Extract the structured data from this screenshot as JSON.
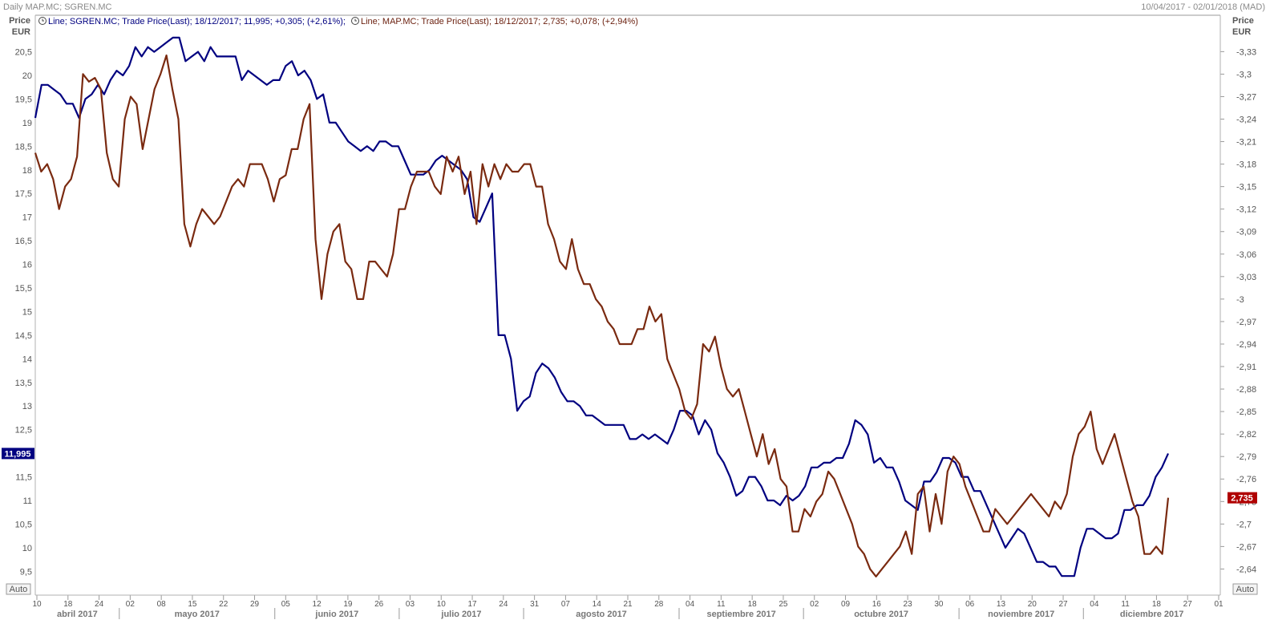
{
  "header": {
    "title": "Daily MAP.MC; SGREN.MC",
    "date_range": "10/04/2017 - 02/01/2018 (MAD)"
  },
  "legend": [
    {
      "text": "Line; SGREN.MC; Trade Price(Last);  18/12/2017; 11,995; +0,305; (+2,61%);"
    },
    {
      "text": "Line; MAP.MC; Trade Price(Last);  18/12/2017; 2,735; +0,078; (+2,94%)"
    }
  ],
  "axes": {
    "left_title": [
      "Price",
      "EUR"
    ],
    "right_title": [
      "Price",
      "EUR"
    ],
    "auto_left": "Auto",
    "auto_right": "Auto"
  },
  "chart_data": {
    "type": "line",
    "colors": {
      "SGREN.MC": "#000080",
      "MAP.MC": "#7a2a10"
    },
    "x_ticks": [
      "10",
      "18",
      "24",
      "02",
      "08",
      "15",
      "22",
      "29",
      "05",
      "12",
      "19",
      "26",
      "03",
      "10",
      "17",
      "24",
      "31",
      "07",
      "14",
      "21",
      "28",
      "04",
      "11",
      "18",
      "25",
      "02",
      "09",
      "16",
      "23",
      "30",
      "06",
      "13",
      "20",
      "27",
      "04",
      "11",
      "18",
      "27",
      "01"
    ],
    "months": [
      "abril 2017",
      "mayo 2017",
      "junio 2017",
      "julio 2017",
      "agosto 2017",
      "septiembre 2017",
      "octubre 2017",
      "noviembre 2017",
      "diciembre 2017"
    ],
    "left_axis": {
      "ylim": [
        9.2,
        20.9
      ],
      "ticks": [
        "20,5",
        "20",
        "19,5",
        "19",
        "18,5",
        "18",
        "17,5",
        "17",
        "16,5",
        "16",
        "15,5",
        "15",
        "14,5",
        "14",
        "13,5",
        "13",
        "12,5",
        "12",
        "11,5",
        "11",
        "10,5",
        "10",
        "9,5"
      ],
      "tick_values": [
        20.5,
        20,
        19.5,
        19,
        18.5,
        18,
        17.5,
        17,
        16.5,
        16,
        15.5,
        15,
        14.5,
        14,
        13.5,
        13,
        12.5,
        12,
        11.5,
        11,
        10.5,
        10,
        9.5
      ]
    },
    "right_axis": {
      "ylim": [
        2.618,
        3.355
      ],
      "ticks": [
        "3,33",
        "3,3",
        "3,27",
        "3,24",
        "3,21",
        "3,18",
        "3,15",
        "3,12",
        "3,09",
        "3,06",
        "3,03",
        "3",
        "2,97",
        "2,94",
        "2,91",
        "2,88",
        "2,85",
        "2,82",
        "2,79",
        "2,76",
        "2,73",
        "2,7",
        "2,67",
        "2,64"
      ],
      "tick_values": [
        3.33,
        3.3,
        3.27,
        3.24,
        3.21,
        3.18,
        3.15,
        3.12,
        3.09,
        3.06,
        3.03,
        3.0,
        2.97,
        2.94,
        2.91,
        2.88,
        2.85,
        2.82,
        2.79,
        2.76,
        2.73,
        2.7,
        2.67,
        2.64
      ]
    },
    "series": [
      {
        "name": "SGREN.MC",
        "axis": "left",
        "last_label": "11,995",
        "values": [
          19.1,
          19.8,
          19.8,
          19.7,
          19.6,
          19.4,
          19.4,
          19.1,
          19.5,
          19.6,
          19.8,
          19.6,
          19.9,
          20.1,
          20.0,
          20.2,
          20.6,
          20.4,
          20.6,
          20.5,
          20.6,
          20.7,
          20.8,
          20.8,
          20.3,
          20.4,
          20.5,
          20.3,
          20.6,
          20.4,
          20.4,
          20.4,
          20.4,
          19.9,
          20.1,
          20.0,
          19.9,
          19.8,
          19.9,
          19.9,
          20.2,
          20.3,
          20.0,
          20.1,
          19.9,
          19.5,
          19.6,
          19.0,
          19.0,
          18.8,
          18.6,
          18.5,
          18.4,
          18.5,
          18.4,
          18.6,
          18.6,
          18.5,
          18.5,
          18.2,
          17.9,
          17.9,
          17.9,
          18.0,
          18.2,
          18.3,
          18.2,
          18.1,
          18.0,
          17.8,
          17.0,
          16.9,
          17.2,
          17.5,
          14.5,
          14.5,
          14.0,
          12.9,
          13.1,
          13.2,
          13.7,
          13.9,
          13.8,
          13.6,
          13.3,
          13.1,
          13.1,
          13.0,
          12.8,
          12.8,
          12.7,
          12.6,
          12.6,
          12.6,
          12.6,
          12.3,
          12.3,
          12.4,
          12.3,
          12.4,
          12.3,
          12.2,
          12.5,
          12.9,
          12.9,
          12.8,
          12.4,
          12.7,
          12.5,
          12.0,
          11.8,
          11.5,
          11.1,
          11.2,
          11.5,
          11.5,
          11.3,
          11.0,
          11.0,
          10.9,
          11.1,
          11.0,
          11.1,
          11.3,
          11.7,
          11.7,
          11.8,
          11.8,
          11.9,
          11.9,
          12.2,
          12.7,
          12.6,
          12.4,
          11.8,
          11.9,
          11.7,
          11.7,
          11.4,
          11.0,
          10.9,
          10.8,
          11.4,
          11.4,
          11.6,
          11.9,
          11.9,
          11.8,
          11.5,
          11.5,
          11.2,
          11.2,
          10.9,
          10.6,
          10.3,
          10.0,
          10.2,
          10.4,
          10.3,
          10.0,
          9.7,
          9.7,
          9.6,
          9.6,
          9.4,
          9.4,
          9.4,
          10.0,
          10.4,
          10.4,
          10.3,
          10.2,
          10.2,
          10.3,
          10.8,
          10.8,
          10.9,
          10.9,
          11.1,
          11.5,
          11.7,
          11.995
        ]
      },
      {
        "name": "MAP.MC",
        "axis": "right",
        "last_label": "2,735",
        "values": [
          3.195,
          3.17,
          3.18,
          3.16,
          3.12,
          3.15,
          3.16,
          3.19,
          3.3,
          3.29,
          3.295,
          3.28,
          3.195,
          3.16,
          3.15,
          3.24,
          3.27,
          3.26,
          3.2,
          3.24,
          3.28,
          3.3,
          3.325,
          3.28,
          3.24,
          3.1,
          3.07,
          3.1,
          3.12,
          3.11,
          3.1,
          3.11,
          3.13,
          3.15,
          3.16,
          3.15,
          3.18,
          3.18,
          3.18,
          3.16,
          3.13,
          3.16,
          3.165,
          3.2,
          3.2,
          3.24,
          3.26,
          3.08,
          3.0,
          3.06,
          3.09,
          3.1,
          3.05,
          3.04,
          3.0,
          3.0,
          3.05,
          3.05,
          3.04,
          3.03,
          3.06,
          3.12,
          3.12,
          3.15,
          3.17,
          3.17,
          3.17,
          3.15,
          3.14,
          3.19,
          3.17,
          3.19,
          3.14,
          3.17,
          3.1,
          3.18,
          3.15,
          3.18,
          3.16,
          3.18,
          3.17,
          3.17,
          3.18,
          3.18,
          3.15,
          3.15,
          3.1,
          3.08,
          3.05,
          3.04,
          3.08,
          3.04,
          3.02,
          3.02,
          3.0,
          2.99,
          2.97,
          2.96,
          2.94,
          2.94,
          2.94,
          2.96,
          2.96,
          2.99,
          2.97,
          2.98,
          2.92,
          2.9,
          2.88,
          2.85,
          2.84,
          2.86,
          2.94,
          2.93,
          2.95,
          2.91,
          2.88,
          2.87,
          2.88,
          2.85,
          2.82,
          2.79,
          2.82,
          2.78,
          2.8,
          2.76,
          2.75,
          2.69,
          2.69,
          2.72,
          2.71,
          2.73,
          2.74,
          2.77,
          2.76,
          2.74,
          2.72,
          2.7,
          2.67,
          2.66,
          2.64,
          2.63,
          2.64,
          2.65,
          2.66,
          2.67,
          2.69,
          2.66,
          2.74,
          2.75,
          2.69,
          2.74,
          2.7,
          2.77,
          2.79,
          2.78,
          2.75,
          2.73,
          2.71,
          2.69,
          2.69,
          2.72,
          2.71,
          2.7,
          2.71,
          2.72,
          2.73,
          2.74,
          2.73,
          2.72,
          2.71,
          2.73,
          2.72,
          2.74,
          2.79,
          2.82,
          2.83,
          2.85,
          2.8,
          2.78,
          2.8,
          2.82,
          2.79,
          2.76,
          2.73,
          2.71,
          2.66,
          2.66,
          2.67,
          2.66,
          2.735
        ]
      }
    ]
  }
}
